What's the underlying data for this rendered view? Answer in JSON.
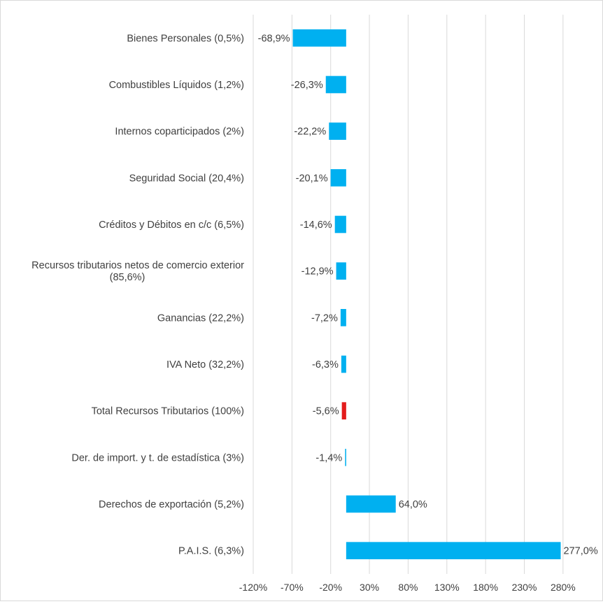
{
  "chart_data": {
    "type": "bar",
    "orientation": "horizontal",
    "title": "",
    "xlabel": "",
    "ylabel": "",
    "xlim": [
      -120,
      300
    ],
    "x_ticks": [
      -120,
      -70,
      -20,
      30,
      80,
      130,
      180,
      230,
      280
    ],
    "x_tick_labels": [
      "-120%",
      "-70%",
      "-20%",
      "30%",
      "80%",
      "130%",
      "180%",
      "230%",
      "280%"
    ],
    "grid": "vertical",
    "legend": "none",
    "default_color": "#00b0f0",
    "highlight_color": "#e31c1c",
    "categories": [
      {
        "label": [
          "Bienes Personales (0,5%)"
        ],
        "value": -68.9,
        "value_label": "-68,9%",
        "highlight": false
      },
      {
        "label": [
          "Combustibles Líquidos (1,2%)"
        ],
        "value": -26.3,
        "value_label": "-26,3%",
        "highlight": false
      },
      {
        "label": [
          "Internos coparticipados (2%)"
        ],
        "value": -22.2,
        "value_label": "-22,2%",
        "highlight": false
      },
      {
        "label": [
          "Seguridad Social (20,4%)"
        ],
        "value": -20.1,
        "value_label": "-20,1%",
        "highlight": false
      },
      {
        "label": [
          "Créditos y Débitos en c/c (6,5%)"
        ],
        "value": -14.6,
        "value_label": "-14,6%",
        "highlight": false
      },
      {
        "label": [
          "Recursos tributarios netos de comercio exterior",
          "(85,6%)"
        ],
        "value": -12.9,
        "value_label": "-12,9%",
        "highlight": false
      },
      {
        "label": [
          "Ganancias (22,2%)"
        ],
        "value": -7.2,
        "value_label": "-7,2%",
        "highlight": false
      },
      {
        "label": [
          "IVA Neto (32,2%)"
        ],
        "value": -6.3,
        "value_label": "-6,3%",
        "highlight": false
      },
      {
        "label": [
          "Total Recursos Tributarios (100%)"
        ],
        "value": -5.6,
        "value_label": "-5,6%",
        "highlight": true
      },
      {
        "label": [
          "Der. de import. y t. de estadística (3%)"
        ],
        "value": -1.4,
        "value_label": "-1,4%",
        "highlight": false
      },
      {
        "label": [
          "Derechos de exportación (5,2%)"
        ],
        "value": 64.0,
        "value_label": "64,0%",
        "highlight": false
      },
      {
        "label": [
          "P.A.I.S. (6,3%)"
        ],
        "value": 277.0,
        "value_label": "277,0%",
        "highlight": false
      }
    ]
  }
}
